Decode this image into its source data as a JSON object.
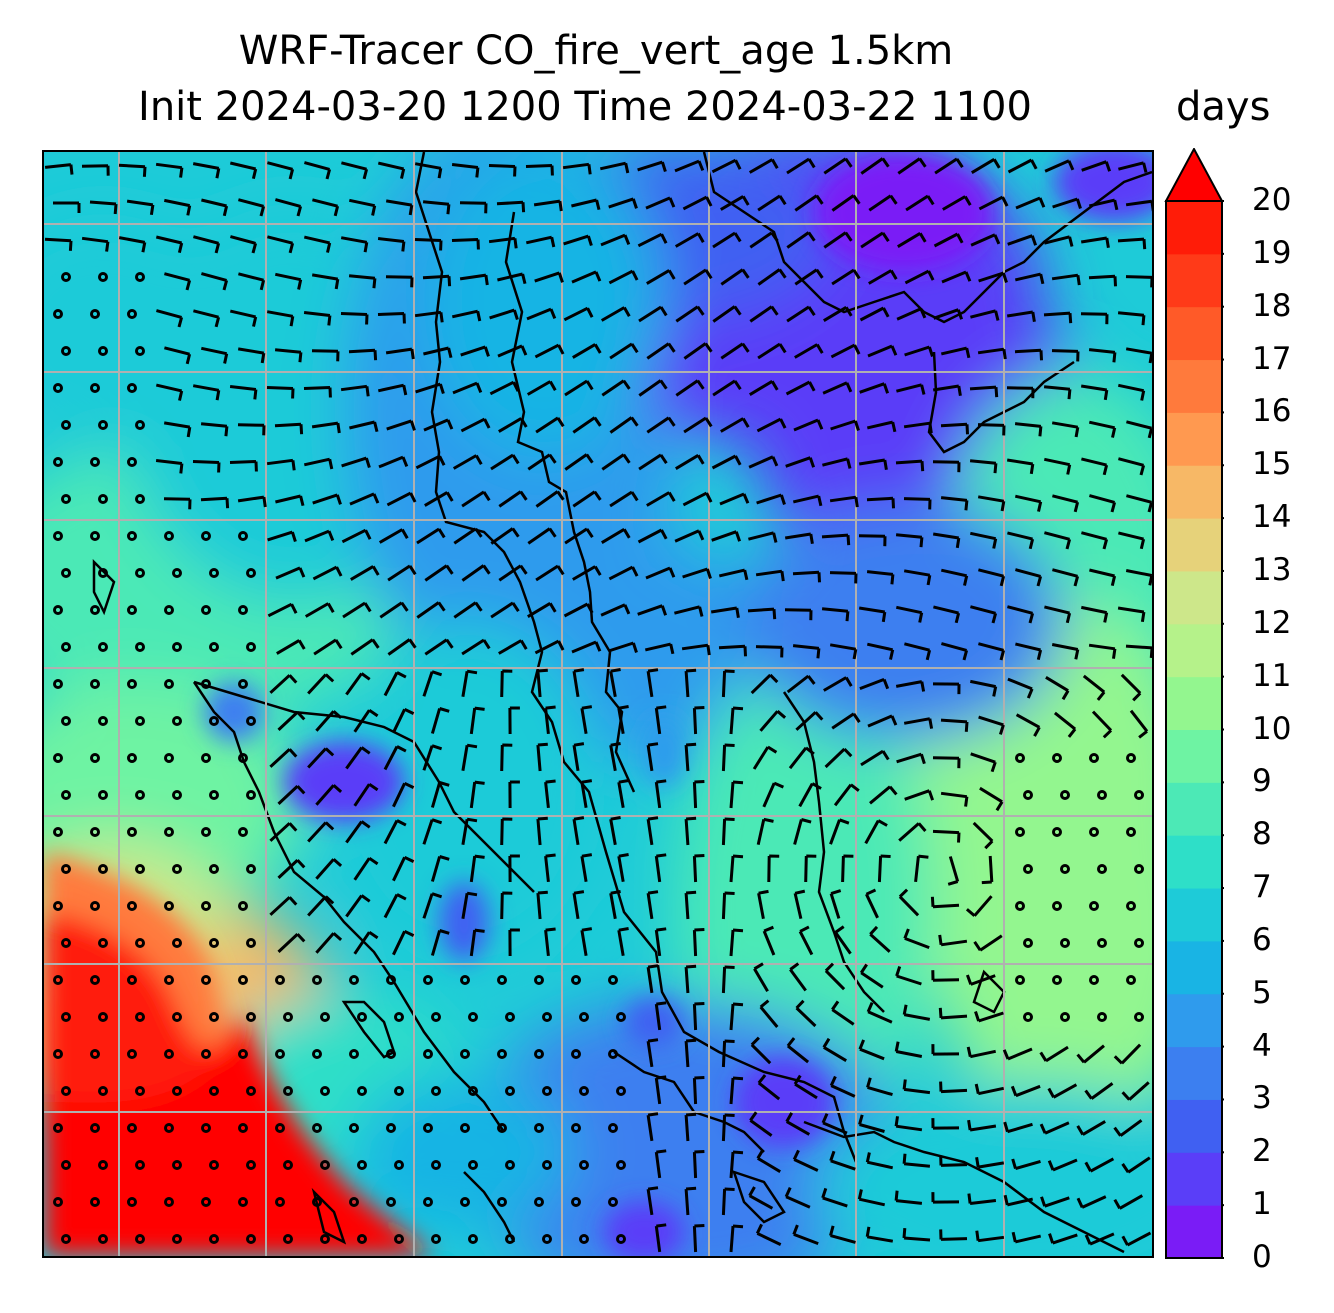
{
  "figure": {
    "title_line1": "WRF-Tracer CO_fire_vert_age 1.5km",
    "title_line2": "Init 2024-03-20 1200 Time 2024-03-22 1100",
    "units": "days"
  },
  "colorbar": {
    "ticks": [
      "0",
      "1",
      "2",
      "3",
      "4",
      "5",
      "6",
      "7",
      "8",
      "9",
      "10",
      "11",
      "12",
      "13",
      "14",
      "15",
      "16",
      "17",
      "18",
      "19",
      "20"
    ],
    "min": 0,
    "max": 20,
    "extend": "max",
    "colors": [
      "#7a1cf6",
      "#5a3ef8",
      "#4060f2",
      "#3c7ff0",
      "#2f9bed",
      "#19b4e4",
      "#1ecbd8",
      "#2edfc8",
      "#4ce9b6",
      "#6ef3a3",
      "#93f68f",
      "#b5f28a",
      "#cde78a",
      "#e6d27a",
      "#f7b866",
      "#ff9950",
      "#ff7a3c",
      "#ff5a28",
      "#ff3a18",
      "#ff1c08",
      "#ff0000"
    ]
  },
  "map": {
    "field": "CO_fire_vert_age",
    "level": "1.5km",
    "gridlines": "on",
    "overlay": "wind barbs"
  }
}
